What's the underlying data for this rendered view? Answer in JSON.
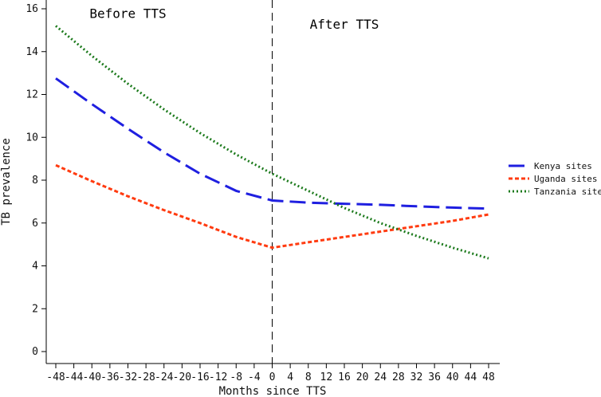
{
  "chart_data": {
    "type": "line",
    "title": "",
    "xlabel": "Months since TTS",
    "ylabel": "TB prevalence",
    "xlim": [
      -50,
      50
    ],
    "ylim": [
      -0.5,
      16.3
    ],
    "xticks": [
      -48,
      -44,
      -40,
      -36,
      -32,
      -28,
      -24,
      -20,
      -16,
      -12,
      -8,
      -4,
      0,
      4,
      8,
      12,
      16,
      20,
      24,
      28,
      32,
      36,
      40,
      44,
      48
    ],
    "yticks": [
      0,
      2,
      4,
      6,
      8,
      10,
      12,
      14,
      16
    ],
    "vline": {
      "x": 0,
      "style": "dashed"
    },
    "annotations": [
      {
        "text": "Before TTS",
        "x": -32,
        "y": 15.8
      },
      {
        "text": "After TTS",
        "x": 16,
        "y": 15.3
      }
    ],
    "legend_position": "right",
    "series": [
      {
        "name": "Kenya sites",
        "color": "#1f1fe0",
        "dash": "long-dash",
        "points": [
          [
            -48,
            12.75
          ],
          [
            -40,
            11.55
          ],
          [
            -32,
            10.4
          ],
          [
            -24,
            9.3
          ],
          [
            -16,
            8.3
          ],
          [
            -8,
            7.5
          ],
          [
            0,
            7.05
          ],
          [
            8,
            6.95
          ],
          [
            16,
            6.9
          ],
          [
            24,
            6.85
          ],
          [
            32,
            6.78
          ],
          [
            40,
            6.72
          ],
          [
            48,
            6.67
          ]
        ]
      },
      {
        "name": "Uganda sites",
        "color": "#ff3b10",
        "dash": "short-dash",
        "points": [
          [
            -48,
            8.7
          ],
          [
            -40,
            7.95
          ],
          [
            -32,
            7.25
          ],
          [
            -24,
            6.6
          ],
          [
            -16,
            6.0
          ],
          [
            -8,
            5.35
          ],
          [
            0,
            4.85
          ],
          [
            8,
            5.1
          ],
          [
            16,
            5.35
          ],
          [
            24,
            5.6
          ],
          [
            32,
            5.85
          ],
          [
            40,
            6.1
          ],
          [
            48,
            6.4
          ]
        ]
      },
      {
        "name": "Tanzania sites",
        "color": "#1c7a1c",
        "dash": "dotted",
        "points": [
          [
            -48,
            15.2
          ],
          [
            -40,
            13.8
          ],
          [
            -32,
            12.5
          ],
          [
            -24,
            11.3
          ],
          [
            -16,
            10.2
          ],
          [
            -8,
            9.2
          ],
          [
            0,
            8.3
          ],
          [
            8,
            7.5
          ],
          [
            16,
            6.7
          ],
          [
            24,
            6.0
          ],
          [
            32,
            5.4
          ],
          [
            40,
            4.85
          ],
          [
            48,
            4.35
          ]
        ]
      }
    ]
  }
}
